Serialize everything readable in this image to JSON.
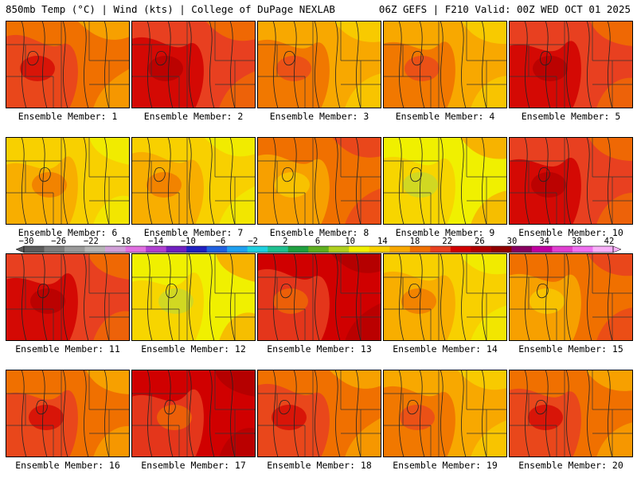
{
  "header": {
    "left": "850mb Temp (°C) | Wind (kts) | College of DuPage NEXLAB",
    "right": "06Z GEFS | F210 Valid: 00Z WED OCT 01 2025"
  },
  "member_prefix": "Ensemble Member:",
  "members": [
    "1",
    "2",
    "3",
    "4",
    "5",
    "6",
    "7",
    "8",
    "9",
    "10",
    "11",
    "12",
    "13",
    "14",
    "15",
    "16",
    "17",
    "18",
    "19",
    "20"
  ],
  "colorbar": {
    "labels": [
      "-30",
      "-26",
      "-22",
      "-18",
      "-14",
      "-10",
      "-6",
      "-2",
      "2",
      "6",
      "10",
      "14",
      "18",
      "22",
      "26",
      "30",
      "34",
      "38",
      "42"
    ],
    "values": [
      -30,
      -26,
      -22,
      -18,
      -14,
      -10,
      -6,
      -2,
      2,
      6,
      10,
      14,
      18,
      22,
      26,
      30,
      34,
      38,
      42
    ],
    "colors": [
      "#5c5c5c",
      "#7d7d7d",
      "#9a9a9a",
      "#b5b5b5",
      "#d1a0d8",
      "#e070e0",
      "#b040d0",
      "#7020c0",
      "#2020c0",
      "#2060e0",
      "#20a0f0",
      "#20d0e0",
      "#20c090",
      "#20a040",
      "#60b020",
      "#b0d020",
      "#f0f000",
      "#f8d000",
      "#f8a800",
      "#f07000",
      "#e84020",
      "#d00000",
      "#b00000",
      "#900000",
      "#880060",
      "#c000a0",
      "#e040d0",
      "#f070f0",
      "#f8b0f8"
    ]
  },
  "panels_temp_levels": [
    22,
    24,
    16,
    18,
    24,
    14,
    14,
    20,
    12,
    24,
    24,
    12,
    26,
    14,
    20,
    22,
    26,
    22,
    18,
    22
  ]
}
